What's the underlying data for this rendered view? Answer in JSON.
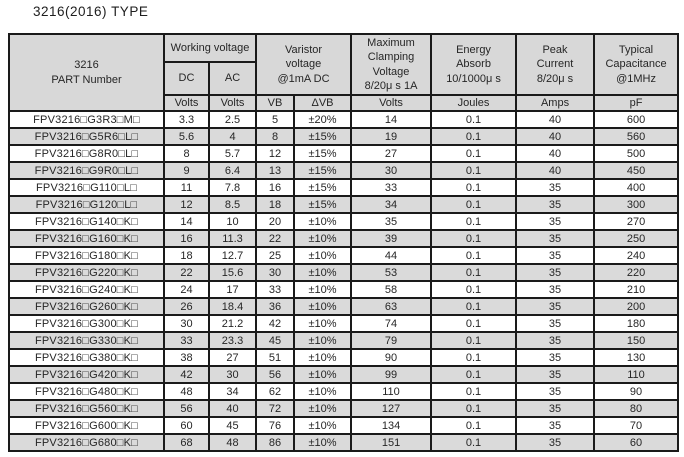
{
  "page": {
    "title": "3216(2016) TYPE"
  },
  "table": {
    "header": {
      "part_number": "3216\nPART Number",
      "working_voltage": "Working voltage",
      "dc": "DC",
      "ac": "AC",
      "varistor_voltage": "Varistor\nvoltage\n@1mA DC",
      "max_clamping": "Maximum\nClamping\nVoltage\n8/20μ s 1A",
      "energy_absorb": "Energy\nAbsorb\n10/1000μ s",
      "peak_current": "Peak\nCurrent\n8/20μ s",
      "typical_capacitance": "Typical\nCapacitance\n@1MHz"
    },
    "units": {
      "dc_volts": "Volts",
      "ac_volts": "Volts",
      "vb": "VB",
      "delta_vb": "ΔVB",
      "clamping_volts": "Volts",
      "energy_joules": "Joules",
      "peak_amps": "Amps",
      "capacitance_pf": "pF"
    },
    "column_keys": [
      "part-number",
      "dc-volts",
      "ac-volts",
      "vb",
      "delta-vb",
      "clamping-volts",
      "energy-joules",
      "peak-amps",
      "capacitance-pf"
    ],
    "rows": [
      [
        "FPV3216□G3R3□M□",
        "3.3",
        "2.5",
        "5",
        "±20%",
        "14",
        "0.1",
        "40",
        "600"
      ],
      [
        "FPV3216□G5R6□L□",
        "5.6",
        "4",
        "8",
        "±15%",
        "19",
        "0.1",
        "40",
        "560"
      ],
      [
        "FPV3216□G8R0□L□",
        "8",
        "5.7",
        "12",
        "±15%",
        "27",
        "0.1",
        "40",
        "500"
      ],
      [
        "FPV3216□G9R0□L□",
        "9",
        "6.4",
        "13",
        "±15%",
        "30",
        "0.1",
        "40",
        "450"
      ],
      [
        "FPV3216□G110□L□",
        "11",
        "7.8",
        "16",
        "±15%",
        "33",
        "0.1",
        "35",
        "400"
      ],
      [
        "FPV3216□G120□L□",
        "12",
        "8.5",
        "18",
        "±15%",
        "34",
        "0.1",
        "35",
        "300"
      ],
      [
        "FPV3216□G140□K□",
        "14",
        "10",
        "20",
        "±10%",
        "35",
        "0.1",
        "35",
        "270"
      ],
      [
        "FPV3216□G160□K□",
        "16",
        "11.3",
        "22",
        "±10%",
        "39",
        "0.1",
        "35",
        "250"
      ],
      [
        "FPV3216□G180□K□",
        "18",
        "12.7",
        "25",
        "±10%",
        "44",
        "0.1",
        "35",
        "240"
      ],
      [
        "FPV3216□G220□K□",
        "22",
        "15.6",
        "30",
        "±10%",
        "53",
        "0.1",
        "35",
        "220"
      ],
      [
        "FPV3216□G240□K□",
        "24",
        "17",
        "33",
        "±10%",
        "58",
        "0.1",
        "35",
        "210"
      ],
      [
        "FPV3216□G260□K□",
        "26",
        "18.4",
        "36",
        "±10%",
        "63",
        "0.1",
        "35",
        "200"
      ],
      [
        "FPV3216□G300□K□",
        "30",
        "21.2",
        "42",
        "±10%",
        "74",
        "0.1",
        "35",
        "180"
      ],
      [
        "FPV3216□G330□K□",
        "33",
        "23.3",
        "45",
        "±10%",
        "79",
        "0.1",
        "35",
        "150"
      ],
      [
        "FPV3216□G380□K□",
        "38",
        "27",
        "51",
        "±10%",
        "90",
        "0.1",
        "35",
        "130"
      ],
      [
        "FPV3216□G420□K□",
        "42",
        "30",
        "56",
        "±10%",
        "99",
        "0.1",
        "35",
        "110"
      ],
      [
        "FPV3216□G480□K□",
        "48",
        "34",
        "62",
        "±10%",
        "110",
        "0.1",
        "35",
        "90"
      ],
      [
        "FPV3216□G560□K□",
        "56",
        "40",
        "72",
        "±10%",
        "127",
        "0.1",
        "35",
        "80"
      ],
      [
        "FPV3216□G600□K□",
        "60",
        "45",
        "76",
        "±10%",
        "134",
        "0.1",
        "35",
        "70"
      ],
      [
        "FPV3216□G680□K□",
        "68",
        "48",
        "86",
        "±10%",
        "151",
        "0.1",
        "35",
        "60"
      ]
    ]
  }
}
